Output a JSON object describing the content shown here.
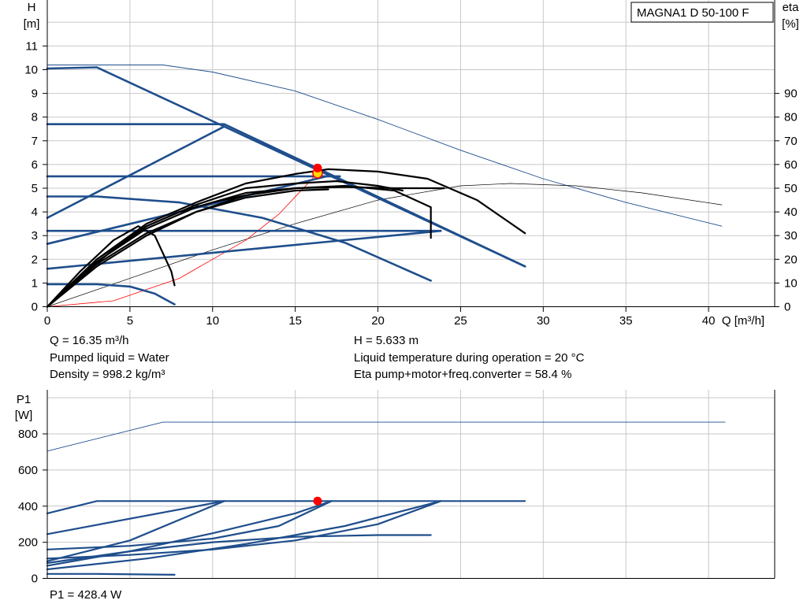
{
  "legend_model": "MAGNA1 D 50-100 F",
  "info": {
    "q": "Q = 16.35 m³/h",
    "liquid": "Pumped liquid = Water",
    "density": "Density = 998.2 kg/m³",
    "h": "H = 5.633 m",
    "temperature": "Liquid temperature during operation = 20 °C",
    "eta": "Eta pump+motor+freq.converter = 58.4 %",
    "p1": "P1 = 428.4 W"
  },
  "colors": {
    "curve_blue": "#1f4e8c",
    "eta_black": "#000000",
    "system_red": "#ff0000",
    "grid": "#c8c8c8",
    "operating_point": "#ff0000",
    "operating_point_inner": "#ffd700"
  },
  "chart_data": [
    {
      "type": "line",
      "title": "",
      "xlabel": "Q [m³/h]",
      "ylabel": "H\n[m]",
      "y2label": "eta\n[%]",
      "xlim": [
        0,
        44
      ],
      "ylim": [
        0,
        12
      ],
      "y2lim": [
        0,
        120
      ],
      "xticks": [
        "0",
        "5",
        "10",
        "15",
        "20",
        "25",
        "30",
        "35",
        "40"
      ],
      "yticks": [
        "0",
        "1",
        "2",
        "3",
        "4",
        "5",
        "6",
        "7",
        "8",
        "9",
        "10",
        "11"
      ],
      "y2ticks": [
        "0",
        "10",
        "20",
        "30",
        "40",
        "50",
        "60",
        "70",
        "80",
        "90"
      ],
      "grid": true,
      "legend": "top-right",
      "series": [
        {
          "role": "max-head-thin",
          "axis": "H",
          "points": [
            [
              0,
              10.2
            ],
            [
              3,
              10.2
            ],
            [
              7,
              10.2
            ],
            [
              10,
              9.9
            ],
            [
              15,
              9.1
            ],
            [
              20,
              7.9
            ],
            [
              25,
              6.6
            ],
            [
              30,
              5.4
            ],
            [
              35,
              4.4
            ],
            [
              40.8,
              3.4
            ]
          ]
        },
        {
          "role": "max-eta-thin",
          "axis": "eta",
          "points": [
            [
              0,
              0
            ],
            [
              5,
              12
            ],
            [
              10,
              24
            ],
            [
              15,
              35
            ],
            [
              20,
              45
            ],
            [
              25,
              51
            ],
            [
              28,
              52
            ],
            [
              32,
              51
            ],
            [
              36,
              48
            ],
            [
              40.8,
              43
            ]
          ]
        },
        {
          "role": "system-curve",
          "axis": "H",
          "points": [
            [
              0,
              0
            ],
            [
              4,
              0.25
            ],
            [
              8,
              1.2
            ],
            [
              12,
              2.8
            ],
            [
              14,
              3.9
            ],
            [
              16.35,
              5.633
            ]
          ]
        },
        {
          "role": "max-curve",
          "axis": "H",
          "points": [
            [
              0,
              10.05
            ],
            [
              3,
              10.1
            ],
            [
              28.9,
              1.7
            ]
          ]
        },
        {
          "role": "constant-pressure-1",
          "axis": "H",
          "points": [
            [
              0,
              7.7
            ],
            [
              10.7,
              7.7
            ],
            [
              28.9,
              1.7
            ]
          ]
        },
        {
          "role": "constant-pressure-2",
          "axis": "H",
          "points": [
            [
              0,
              5.5
            ],
            [
              17.7,
              5.5
            ]
          ]
        },
        {
          "role": "constant-pressure-3",
          "axis": "H",
          "points": [
            [
              0,
              3.2
            ],
            [
              23.8,
              3.2
            ]
          ]
        },
        {
          "role": "proportional-1",
          "axis": "H",
          "points": [
            [
              0,
              3.75
            ],
            [
              10.7,
              7.6
            ]
          ]
        },
        {
          "role": "proportional-2",
          "axis": "H",
          "points": [
            [
              0,
              2.65
            ],
            [
              17.2,
              5.55
            ]
          ]
        },
        {
          "role": "proportional-3",
          "axis": "H",
          "points": [
            [
              0,
              1.6
            ],
            [
              23.8,
              3.2
            ]
          ]
        },
        {
          "role": "min-curve",
          "axis": "H",
          "points": [
            [
              0,
              4.65
            ],
            [
              3,
              4.65
            ],
            [
              8,
              4.4
            ],
            [
              13,
              3.75
            ],
            [
              18,
              2.7
            ],
            [
              23.2,
              1.1
            ]
          ]
        },
        {
          "role": "min-curve-low",
          "axis": "H",
          "points": [
            [
              0,
              0.95
            ],
            [
              3,
              0.95
            ],
            [
              5,
              0.85
            ],
            [
              6.5,
              0.55
            ],
            [
              7.7,
              0.1
            ]
          ]
        },
        {
          "role": "eta-max",
          "axis": "eta",
          "points": [
            [
              0,
              0
            ],
            [
              3,
              20
            ],
            [
              6,
              35
            ],
            [
              9,
              44
            ],
            [
              12,
              52
            ],
            [
              15,
              56
            ],
            [
              17,
              58
            ],
            [
              20,
              57
            ],
            [
              23,
              54
            ],
            [
              26,
              45
            ],
            [
              28.9,
              31
            ]
          ]
        },
        {
          "role": "eta-mid",
          "axis": "eta",
          "points": [
            [
              0,
              0
            ],
            [
              3,
              20
            ],
            [
              6,
              34
            ],
            [
              9,
              43
            ],
            [
              12,
              50
            ],
            [
              15,
              52
            ],
            [
              17.5,
              53
            ],
            [
              20,
              51
            ],
            [
              21.5,
              49
            ]
          ]
        },
        {
          "role": "eta-mid2",
          "axis": "eta",
          "points": [
            [
              0,
              0
            ],
            [
              3,
              19
            ],
            [
              6,
              33
            ],
            [
              9,
              42
            ],
            [
              12,
              48
            ],
            [
              15,
              50
            ],
            [
              18,
              51
            ],
            [
              21,
              49
            ],
            [
              23.2,
              42
            ],
            [
              23.2,
              29
            ]
          ]
        },
        {
          "role": "eta-prop",
          "axis": "eta",
          "points": [
            [
              0,
              0
            ],
            [
              3,
              17
            ],
            [
              6,
              30
            ],
            [
              9,
              40
            ],
            [
              12,
              47
            ],
            [
              15,
              50
            ],
            [
              18,
              50.5
            ],
            [
              21,
              50
            ],
            [
              24,
              50
            ]
          ]
        },
        {
          "role": "eta-prop2",
          "axis": "eta",
          "points": [
            [
              0,
              0
            ],
            [
              3,
              18
            ],
            [
              6,
              31
            ],
            [
              9,
              40
            ],
            [
              12,
              46
            ],
            [
              15,
              49
            ],
            [
              17,
              49.5
            ]
          ]
        },
        {
          "role": "eta-low",
          "axis": "eta",
          "points": [
            [
              0,
              0
            ],
            [
              2,
              15
            ],
            [
              4,
              28
            ],
            [
              5.5,
              34
            ],
            [
              6.5,
              30
            ],
            [
              7.5,
              15
            ],
            [
              7.7,
              9
            ]
          ]
        },
        {
          "role": "eta-low2",
          "axis": "eta",
          "points": [
            [
              0,
              0
            ],
            [
              2,
              13
            ],
            [
              4,
              24
            ],
            [
              6,
              34
            ],
            [
              8,
              40
            ],
            [
              10,
              44
            ],
            [
              12,
              47
            ]
          ]
        }
      ],
      "operating_point": {
        "q": 16.35,
        "h": 5.633,
        "h_upper": 5.85
      }
    },
    {
      "type": "line",
      "title": "",
      "xlabel": "",
      "ylabel": "P1\n[W]",
      "xlim": [
        0,
        44
      ],
      "ylim": [
        0,
        1000
      ],
      "yticks": [
        "0",
        "200",
        "400",
        "600",
        "800"
      ],
      "grid": true,
      "series": [
        {
          "role": "p1-max-thin",
          "points": [
            [
              0,
              705
            ],
            [
              7,
              865
            ],
            [
              41,
              865
            ]
          ]
        },
        {
          "role": "p1-max",
          "points": [
            [
              0,
              360
            ],
            [
              3,
              428
            ],
            [
              28.9,
              428
            ]
          ]
        },
        {
          "role": "p1-cp1",
          "points": [
            [
              0,
              245
            ],
            [
              10.7,
              428
            ]
          ]
        },
        {
          "role": "p1-cp2",
          "points": [
            [
              0,
              160
            ],
            [
              5,
              180
            ],
            [
              10,
              220
            ],
            [
              14,
              290
            ],
            [
              17.2,
              428
            ]
          ]
        },
        {
          "role": "p1-cp3",
          "points": [
            [
              0,
              110
            ],
            [
              5,
              130
            ],
            [
              10,
              160
            ],
            [
              15,
              210
            ],
            [
              20,
              300
            ],
            [
              23.8,
              428
            ]
          ]
        },
        {
          "role": "p1-prop1",
          "points": [
            [
              0,
              95
            ],
            [
              5,
              210
            ],
            [
              10.7,
              428
            ]
          ]
        },
        {
          "role": "p1-prop2",
          "points": [
            [
              0,
              70
            ],
            [
              5,
              150
            ],
            [
              10,
              250
            ],
            [
              15,
              360
            ],
            [
              17.2,
              428
            ]
          ]
        },
        {
          "role": "p1-prop3",
          "points": [
            [
              0,
              50
            ],
            [
              6,
              110
            ],
            [
              12,
              190
            ],
            [
              18,
              290
            ],
            [
              23.8,
              428
            ]
          ]
        },
        {
          "role": "p1-min",
          "points": [
            [
              0,
              85
            ],
            [
              5,
              150
            ],
            [
              10,
              200
            ],
            [
              15,
              230
            ],
            [
              20,
              240
            ],
            [
              23.2,
              240
            ]
          ]
        },
        {
          "role": "p1-min-low",
          "points": [
            [
              0,
              25
            ],
            [
              3,
              25
            ],
            [
              7.7,
              20
            ]
          ]
        }
      ],
      "operating_point": {
        "q": 16.35,
        "p1": 428.4
      }
    }
  ]
}
